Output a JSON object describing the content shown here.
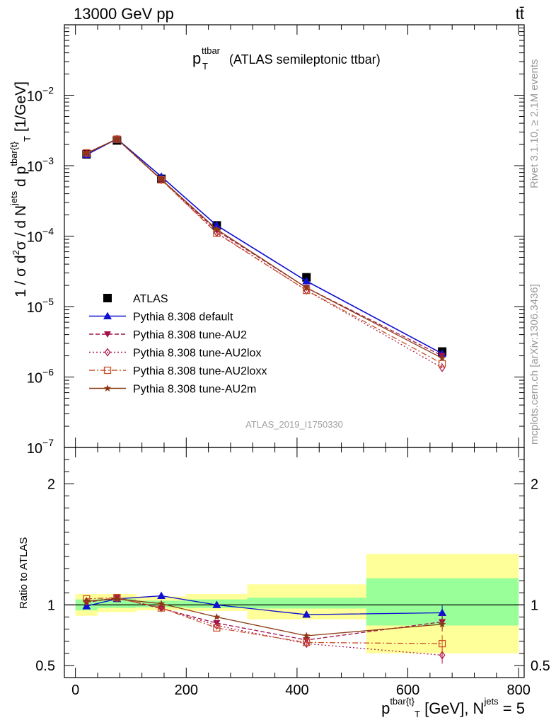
{
  "header": {
    "energy_label": "13000 GeV pp",
    "process_label": "tt̄",
    "title_main": "p",
    "title_sup": "ttbar",
    "title_sub": "T",
    "title_rest": "(ATLAS semileptonic ttbar)"
  },
  "side": {
    "rivet": "Rivet 3.1.10, ≥ 2.1M events",
    "mcplots": "mcplots.cern.ch [arXiv:1306.3436]"
  },
  "watermark": "ATLAS_2019_I1750330",
  "ylabel_main": "1 / σ d²σ / d N^jets d p^tbar{t}_T [1/GeV]",
  "ylabel_ratio": "Ratio to ATLAS",
  "xlabel": "p^tbar{t}_T [GeV], N^jets = 5",
  "chart_data": [
    {
      "type": "scatter",
      "title": "p_T^ttbar (ATLAS semileptonic ttbar)",
      "xlabel": "p^{tbar{t}}_T [GeV], N^{jets} = 5",
      "ylabel": "1 / σ d²σ / d N^jets d p^{tbar{t}}_T [1/GeV]",
      "yscale": "log",
      "xlim": [
        -20,
        810
      ],
      "ylim": [
        1e-07,
        0.1
      ],
      "x_ticks": [
        0,
        200,
        400,
        600,
        800
      ],
      "y_ticks": [
        1e-07,
        1e-06,
        1e-05,
        0.0001,
        0.001,
        0.01
      ],
      "y_tick_labels": [
        {
          "base": "10",
          "exp": "−7"
        },
        {
          "base": "10",
          "exp": "−6"
        },
        {
          "base": "10",
          "exp": "−5"
        },
        {
          "base": "10",
          "exp": "−4"
        },
        {
          "base": "10",
          "exp": "−3"
        },
        {
          "base": "10",
          "exp": "−2"
        }
      ],
      "x": [
        20,
        75,
        155,
        255,
        417,
        662
      ],
      "legend_position": "bottom-left",
      "series": [
        {
          "name": "ATLAS",
          "color": "#000000",
          "marker": "square",
          "dash": "none",
          "values": [
            0.00145,
            0.00228,
            0.00065,
            0.000142,
            2.6e-05,
            2.3e-06
          ]
        },
        {
          "name": "Pythia 8.308 default",
          "color": "#1010d0",
          "marker": "triangle-up",
          "dash": "solid",
          "values": [
            0.00143,
            0.0024,
            0.0007,
            0.000142,
            2.3e-05,
            2.15e-06
          ]
        },
        {
          "name": "Pythia 8.308 tune-AU2",
          "color": "#a0104a",
          "marker": "triangle-down",
          "dash": "dashed",
          "values": [
            0.00148,
            0.0024,
            0.00063,
            0.00012,
            1.85e-05,
            2e-06
          ]
        },
        {
          "name": "Pythia 8.308 tune-AU2lox",
          "color": "#b01a4a",
          "marker": "diamond-open",
          "dash": "dotted",
          "values": [
            0.0015,
            0.00238,
            0.00063,
            0.000112,
            1.7e-05,
            1.35e-06
          ]
        },
        {
          "name": "Pythia 8.308 tune-AU2loxx",
          "color": "#c8502a",
          "marker": "square-open",
          "dash": "dashdot",
          "values": [
            0.00152,
            0.00238,
            0.00063,
            0.00011,
            1.7e-05,
            1.55e-06
          ]
        },
        {
          "name": "Pythia 8.308 tune-AU2m",
          "color": "#8b3a12",
          "marker": "star",
          "dash": "solid",
          "values": [
            0.0015,
            0.0024,
            0.00064,
            0.000125,
            1.85e-05,
            1.85e-06
          ]
        }
      ]
    },
    {
      "type": "scatter",
      "title": "Ratio to ATLAS",
      "ylabel": "Ratio to ATLAS",
      "xlim": [
        -20,
        810
      ],
      "ylim": [
        0.4,
        2.3
      ],
      "y_ticks": [
        0.5,
        1,
        2
      ],
      "x": [
        20,
        75,
        155,
        255,
        417,
        662
      ],
      "bins": [
        [
          0,
          40
        ],
        [
          40,
          110
        ],
        [
          110,
          200
        ],
        [
          200,
          310
        ],
        [
          310,
          525
        ],
        [
          525,
          800
        ]
      ],
      "band_inner": [
        [
          0.955,
          1.045
        ],
        [
          0.975,
          1.05
        ],
        [
          0.98,
          1.035
        ],
        [
          0.975,
          1.045
        ],
        [
          0.97,
          1.06
        ],
        [
          0.83,
          1.22
        ]
      ],
      "band_outer": [
        [
          0.91,
          1.09
        ],
        [
          0.94,
          1.09
        ],
        [
          0.955,
          1.07
        ],
        [
          0.95,
          1.09
        ],
        [
          0.88,
          1.17
        ],
        [
          0.6,
          1.42
        ]
      ],
      "band_colors": {
        "inner": "#99ff99",
        "outer": "#ffff99"
      },
      "series": [
        {
          "name": "Pythia 8.308 default",
          "values": [
            0.99,
            1.05,
            1.075,
            1.0,
            0.92,
            0.935
          ],
          "errors": [
            0.01,
            0.01,
            0.01,
            0.01,
            0.02,
            0.06
          ]
        },
        {
          "name": "Pythia 8.308 tune-AU2",
          "values": [
            1.02,
            1.06,
            0.97,
            0.85,
            0.71,
            0.86
          ],
          "errors": [
            0.01,
            0.01,
            0.01,
            0.01,
            0.02,
            0.06
          ]
        },
        {
          "name": "Pythia 8.308 tune-AU2lox",
          "values": [
            1.03,
            1.055,
            0.975,
            0.83,
            0.68,
            0.585
          ],
          "errors": [
            0.01,
            0.01,
            0.01,
            0.01,
            0.02,
            0.07
          ]
        },
        {
          "name": "Pythia 8.308 tune-AU2loxx",
          "values": [
            1.05,
            1.06,
            0.975,
            0.81,
            0.69,
            0.68
          ],
          "errors": [
            0.01,
            0.01,
            0.01,
            0.01,
            0.02,
            0.07
          ]
        },
        {
          "name": "Pythia 8.308 tune-AU2m",
          "values": [
            1.03,
            1.05,
            1.01,
            0.9,
            0.745,
            0.84
          ],
          "errors": [
            0.01,
            0.01,
            0.01,
            0.01,
            0.02,
            0.06
          ]
        }
      ]
    }
  ]
}
